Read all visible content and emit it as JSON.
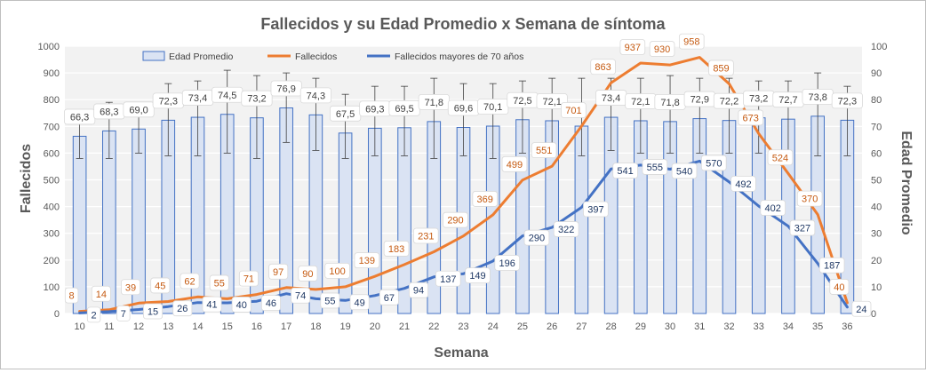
{
  "chart_data": {
    "type": "bar",
    "title": "Fallecidos y su Edad Promedio  x Semana de síntoma",
    "xlabel": "Semana",
    "ylabel": "Fallecidos",
    "y2label": "Edad Promedio",
    "ylim": [
      0,
      1000
    ],
    "y2lim": [
      0,
      100
    ],
    "yticks": [
      0,
      100,
      200,
      300,
      400,
      500,
      600,
      700,
      800,
      900,
      1000
    ],
    "y2ticks": [
      0,
      10,
      20,
      30,
      40,
      50,
      60,
      70,
      80,
      90,
      100
    ],
    "grid": true,
    "legend_position": "top",
    "categories": [
      "10",
      "11",
      "12",
      "13",
      "14",
      "15",
      "16",
      "17",
      "18",
      "19",
      "20",
      "21",
      "22",
      "23",
      "24",
      "25",
      "26",
      "27",
      "28",
      "29",
      "30",
      "31",
      "32",
      "33",
      "34",
      "35",
      "36"
    ],
    "series": [
      {
        "name": "Edad Promedio",
        "type": "bar",
        "axis": "right",
        "color": "#dae3f3",
        "edge_color": "#4472c4",
        "values": [
          66.3,
          68.3,
          69.0,
          72.3,
          73.4,
          74.5,
          73.2,
          76.9,
          74.3,
          67.5,
          69.3,
          69.5,
          71.8,
          69.6,
          70.1,
          72.5,
          72.1,
          70.1,
          73.4,
          72.1,
          71.8,
          72.9,
          72.2,
          73.2,
          72.7,
          73.8,
          72.3
        ],
        "labels": [
          "66,3",
          "68,3",
          "69,0",
          "72,3",
          "73,4",
          "74,5",
          "73,2",
          "76,9",
          "74,3",
          "67,5",
          "69,3",
          "69,5",
          "71,8",
          "69,6",
          "70,1",
          "72,5",
          "72,1",
          "",
          "73,4",
          "72,1",
          "71,8",
          "72,9",
          "72,2",
          "73,2",
          "72,7",
          "73,8",
          "72,3"
        ],
        "error_upper": [
          76,
          79,
          79,
          86,
          87,
          91,
          89,
          90,
          88,
          82,
          85,
          85,
          88,
          86,
          86,
          87,
          88,
          88,
          88,
          88,
          89,
          88,
          88,
          87,
          87,
          90,
          85
        ],
        "error_lower": [
          58,
          58,
          60,
          59,
          59,
          60,
          58,
          64,
          61,
          58,
          59,
          59,
          58,
          59,
          58,
          60,
          59,
          59,
          61,
          60,
          60,
          60,
          60,
          60,
          60,
          59,
          59
        ]
      },
      {
        "name": "Fallecidos",
        "type": "line",
        "axis": "left",
        "color": "#ed7d31",
        "values": [
          8,
          14,
          39,
          45,
          62,
          55,
          71,
          97,
          90,
          100,
          139,
          183,
          231,
          290,
          369,
          499,
          551,
          701,
          863,
          937,
          930,
          958,
          859,
          673,
          524,
          370,
          40
        ]
      },
      {
        "name": "Fallecidos mayores de 70 años",
        "type": "line",
        "axis": "left",
        "color": "#4472c4",
        "values": [
          2,
          7,
          15,
          26,
          41,
          40,
          46,
          74,
          55,
          49,
          67,
          94,
          137,
          149,
          196,
          290,
          322,
          397,
          541,
          555,
          540,
          570,
          492,
          402,
          327,
          187,
          24
        ]
      }
    ]
  }
}
